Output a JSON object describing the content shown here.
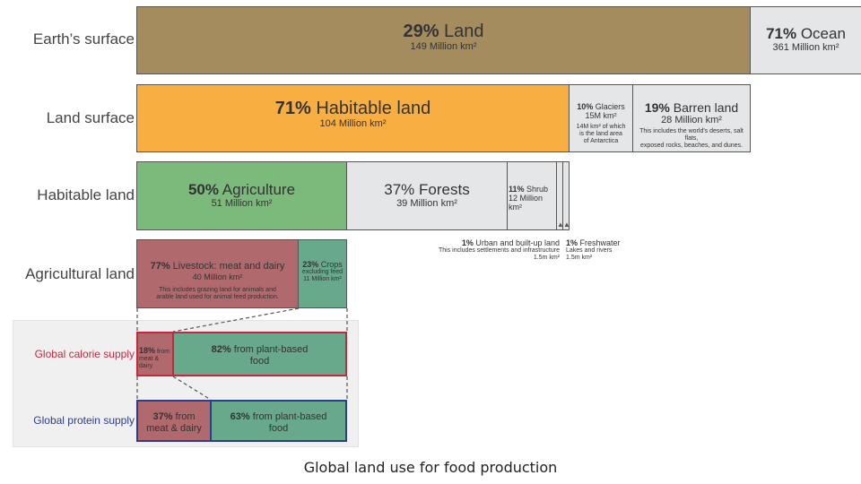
{
  "rows": {
    "earth": "Earth’s surface",
    "land": "Land surface",
    "habitable": "Habitable land",
    "agricultural": "Agricultural land",
    "calorie": "Global calorie supply",
    "protein": "Global protein supply"
  },
  "boxes": {
    "land": {
      "pct": "29%",
      "name": "Land",
      "area": "149 Million km²"
    },
    "ocean": {
      "pct": "71%",
      "name": "Ocean",
      "area": "361 Million km²"
    },
    "habitable": {
      "pct": "71%",
      "name": "Habitable land",
      "area": "104 Million km²"
    },
    "glaciers": {
      "pct": "10%",
      "name": "Glaciers",
      "area": "15M km²",
      "note1": "14M km² of which",
      "note2": "is the land area",
      "note3": "of Antarctica"
    },
    "barren": {
      "pct": "19%",
      "name": "Barren land",
      "area": "28 Million km²",
      "note1": "This includes the world's deserts, salt flats,",
      "note2": "exposed rocks, beaches, and dunes."
    },
    "agriculture": {
      "pct": "50%",
      "name": "Agriculture",
      "area": "51 Million km²"
    },
    "forests": {
      "pct": "37%",
      "name": "Forests",
      "area": "39 Million km²"
    },
    "shrub": {
      "pct": "11%",
      "name": "Shrub",
      "area": "12 Million km²"
    },
    "urban": {
      "pct": "1%",
      "name": "Urban and built-up land",
      "note": "This includes settlements and infrastructure",
      "area": "1.5m km²"
    },
    "freshwater": {
      "pct": "1%",
      "name": "Freshwater",
      "note": "Lakes and rivers",
      "area": "1.5m km²"
    },
    "livestock": {
      "pct": "77%",
      "name": "Livestock: meat and dairy",
      "area": "40 Million km²",
      "note1": "This includes grazing land for animals and",
      "note2": "arable land used for animal feed production."
    },
    "crops": {
      "pct": "23%",
      "name": "Crops",
      "note": "excluding feed",
      "area": "11 Million km²"
    },
    "calorie_meat": {
      "pct": "18%",
      "name1": "from",
      "name2": "meat & dairy"
    },
    "calorie_plant": {
      "pct": "82%",
      "name1": "from plant-based",
      "name2": "food"
    },
    "protein_meat": {
      "pct": "37%",
      "name1": "from",
      "name2": "meat & dairy"
    },
    "protein_plant": {
      "pct": "63%",
      "name1": "from plant-based",
      "name2": "food"
    }
  },
  "colors": {
    "land": "#a58c5f",
    "ocean": "#e5e6e8",
    "habitable": "#f9ae41",
    "grey": "#e5e6e8",
    "agriculture": "#7cba7c",
    "livestock": "#b06a6e",
    "crops": "#67a98a",
    "calorie_border": "#c5283d",
    "protein_border": "#2d3c8e"
  },
  "caption": "Global land use for food production"
}
